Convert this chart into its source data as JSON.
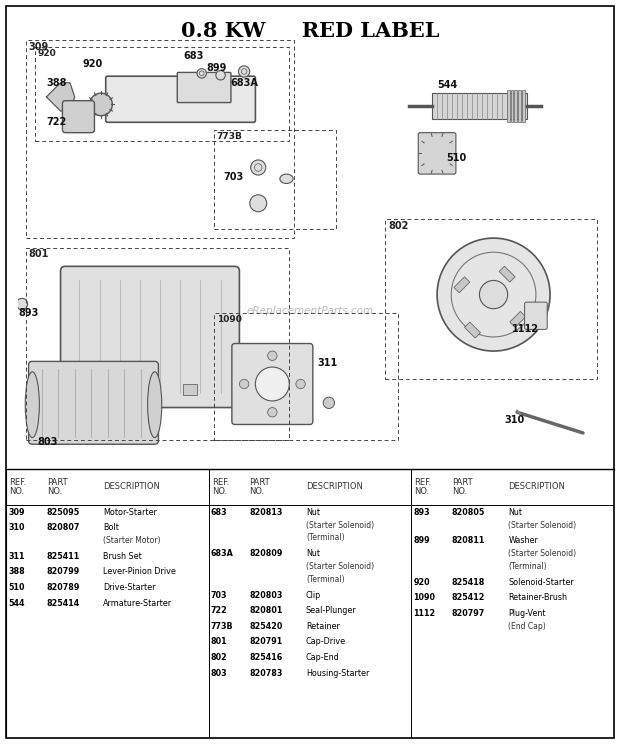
{
  "title": "0.8 KW     RED LABEL",
  "bg_color": "#f5f5f5",
  "col1_data": [
    [
      "309",
      "825095",
      [
        "Motor-Starter"
      ]
    ],
    [
      "310",
      "820807",
      [
        "Bolt",
        "(Starter Motor)"
      ]
    ],
    [
      "311",
      "825411",
      [
        "Brush Set"
      ]
    ],
    [
      "388",
      "820799",
      [
        "Lever-Pinion Drive"
      ]
    ],
    [
      "510",
      "820789",
      [
        "Drive-Starter"
      ]
    ],
    [
      "544",
      "825414",
      [
        "Armature-Starter"
      ]
    ]
  ],
  "col2_data": [
    [
      "683",
      "820813",
      [
        "Nut",
        "(Starter Solenoid)",
        "(Terminal)"
      ]
    ],
    [
      "683A",
      "820809",
      [
        "Nut",
        "(Starter Solenoid)",
        "(Terminal)"
      ]
    ],
    [
      "703",
      "820803",
      [
        "Clip"
      ]
    ],
    [
      "722",
      "820801",
      [
        "Seal-Plunger"
      ]
    ],
    [
      "773B",
      "825420",
      [
        "Retainer"
      ]
    ],
    [
      "801",
      "820791",
      [
        "Cap-Drive"
      ]
    ],
    [
      "802",
      "825416",
      [
        "Cap-End"
      ]
    ],
    [
      "803",
      "820783",
      [
        "Housing-Starter"
      ]
    ]
  ],
  "col3_data": [
    [
      "893",
      "820805",
      [
        "Nut",
        "(Starter Solenoid)"
      ]
    ],
    [
      "899",
      "820811",
      [
        "Washer",
        "(Starter Solenoid)",
        "(Terminal)"
      ]
    ],
    [
      "920",
      "825418",
      [
        "Solenoid-Starter"
      ]
    ],
    [
      "1090",
      "825412",
      [
        "Retainer-Brush"
      ]
    ],
    [
      "1112",
      "820797",
      [
        "Plug-Vent",
        "(End Cap)"
      ]
    ]
  ]
}
